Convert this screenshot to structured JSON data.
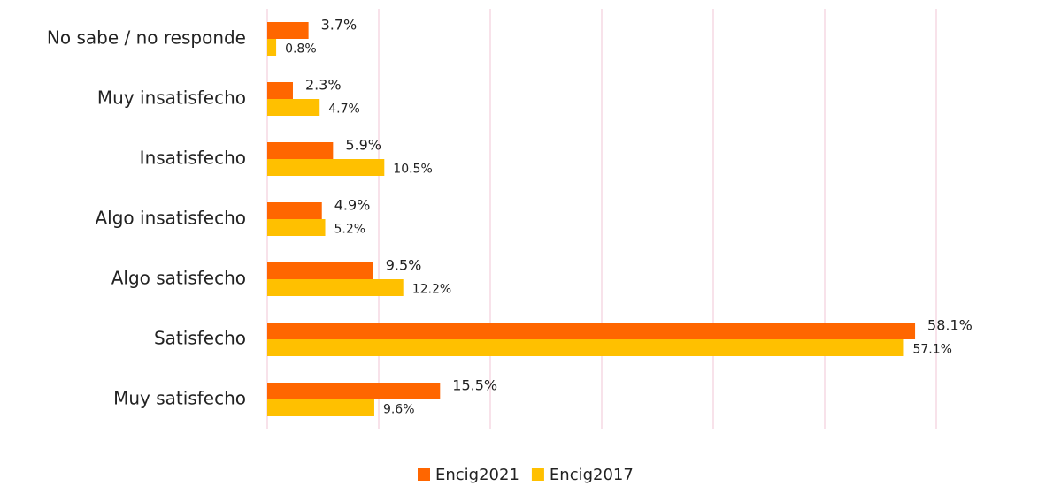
{
  "chart_data": {
    "type": "bar",
    "orientation": "horizontal",
    "categories": [
      "No sabe / no responde",
      "Muy insatisfecho",
      "Insatisfecho",
      "Algo insatisfecho",
      "Algo satisfecho",
      "Satisfecho",
      "Muy satisfecho"
    ],
    "series": [
      {
        "name": "Encig2021",
        "color": "#ff6600",
        "values": [
          3.7,
          2.3,
          5.9,
          4.9,
          9.5,
          58.1,
          15.5
        ],
        "value_labels": [
          "3.7%",
          "2.3%",
          "5.9%",
          "4.9%",
          "9.5%",
          "58.1%",
          "15.5%"
        ]
      },
      {
        "name": "Encig2017",
        "color": "#ffc000",
        "values": [
          0.8,
          4.7,
          10.5,
          5.2,
          12.2,
          57.1,
          9.6
        ],
        "value_labels": [
          "0.8%",
          "4.7%",
          "10.5%",
          "5.2%",
          "12.2%",
          "57.1%",
          "9.6%"
        ]
      }
    ],
    "xlim": [
      0,
      60
    ],
    "xticks": [
      0,
      10,
      20,
      30,
      40,
      50,
      60
    ],
    "grid": true,
    "legend": "bottom"
  }
}
